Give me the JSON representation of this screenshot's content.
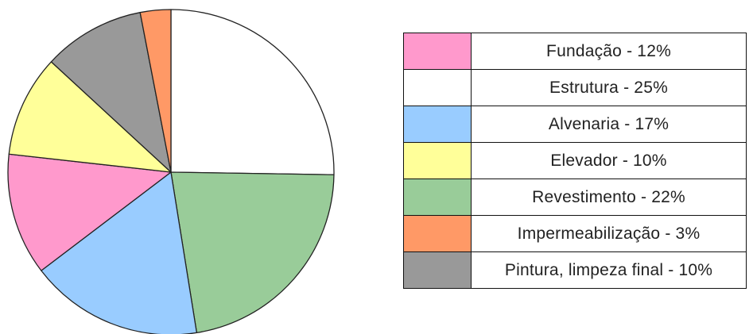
{
  "chart_data": {
    "type": "pie",
    "start_angle_deg": 0,
    "direction": "clockwise",
    "slices": [
      {
        "label": "Estrutura",
        "value": 25,
        "color": "#FFFFFF"
      },
      {
        "label": "Revestimento",
        "value": 22,
        "color": "#99CC99"
      },
      {
        "label": "Alvenaria",
        "value": 17,
        "color": "#99CCFF"
      },
      {
        "label": "Fundação",
        "value": 12,
        "color": "#FF99CC"
      },
      {
        "label": "Elevador",
        "value": 10,
        "color": "#FFFF99"
      },
      {
        "label": "Pintura, limpeza final",
        "value": 10,
        "color": "#999999"
      },
      {
        "label": "Impermeabilização",
        "value": 3,
        "color": "#FF9966"
      }
    ],
    "legend": {
      "placement": "right",
      "entries": [
        {
          "text": "Fundação - 12%",
          "color": "#FF99CC"
        },
        {
          "text": "Estrutura - 25%",
          "color": "#FFFFFF"
        },
        {
          "text": "Alvenaria - 17%",
          "color": "#99CCFF"
        },
        {
          "text": "Elevador - 10%",
          "color": "#FFFF99"
        },
        {
          "text": "Revestimento - 22%",
          "color": "#99CC99"
        },
        {
          "text": "Impermeabilização - 3%",
          "color": "#FF9966"
        },
        {
          "text": "Pintura, limpeza final - 10%",
          "color": "#999999"
        }
      ]
    }
  }
}
